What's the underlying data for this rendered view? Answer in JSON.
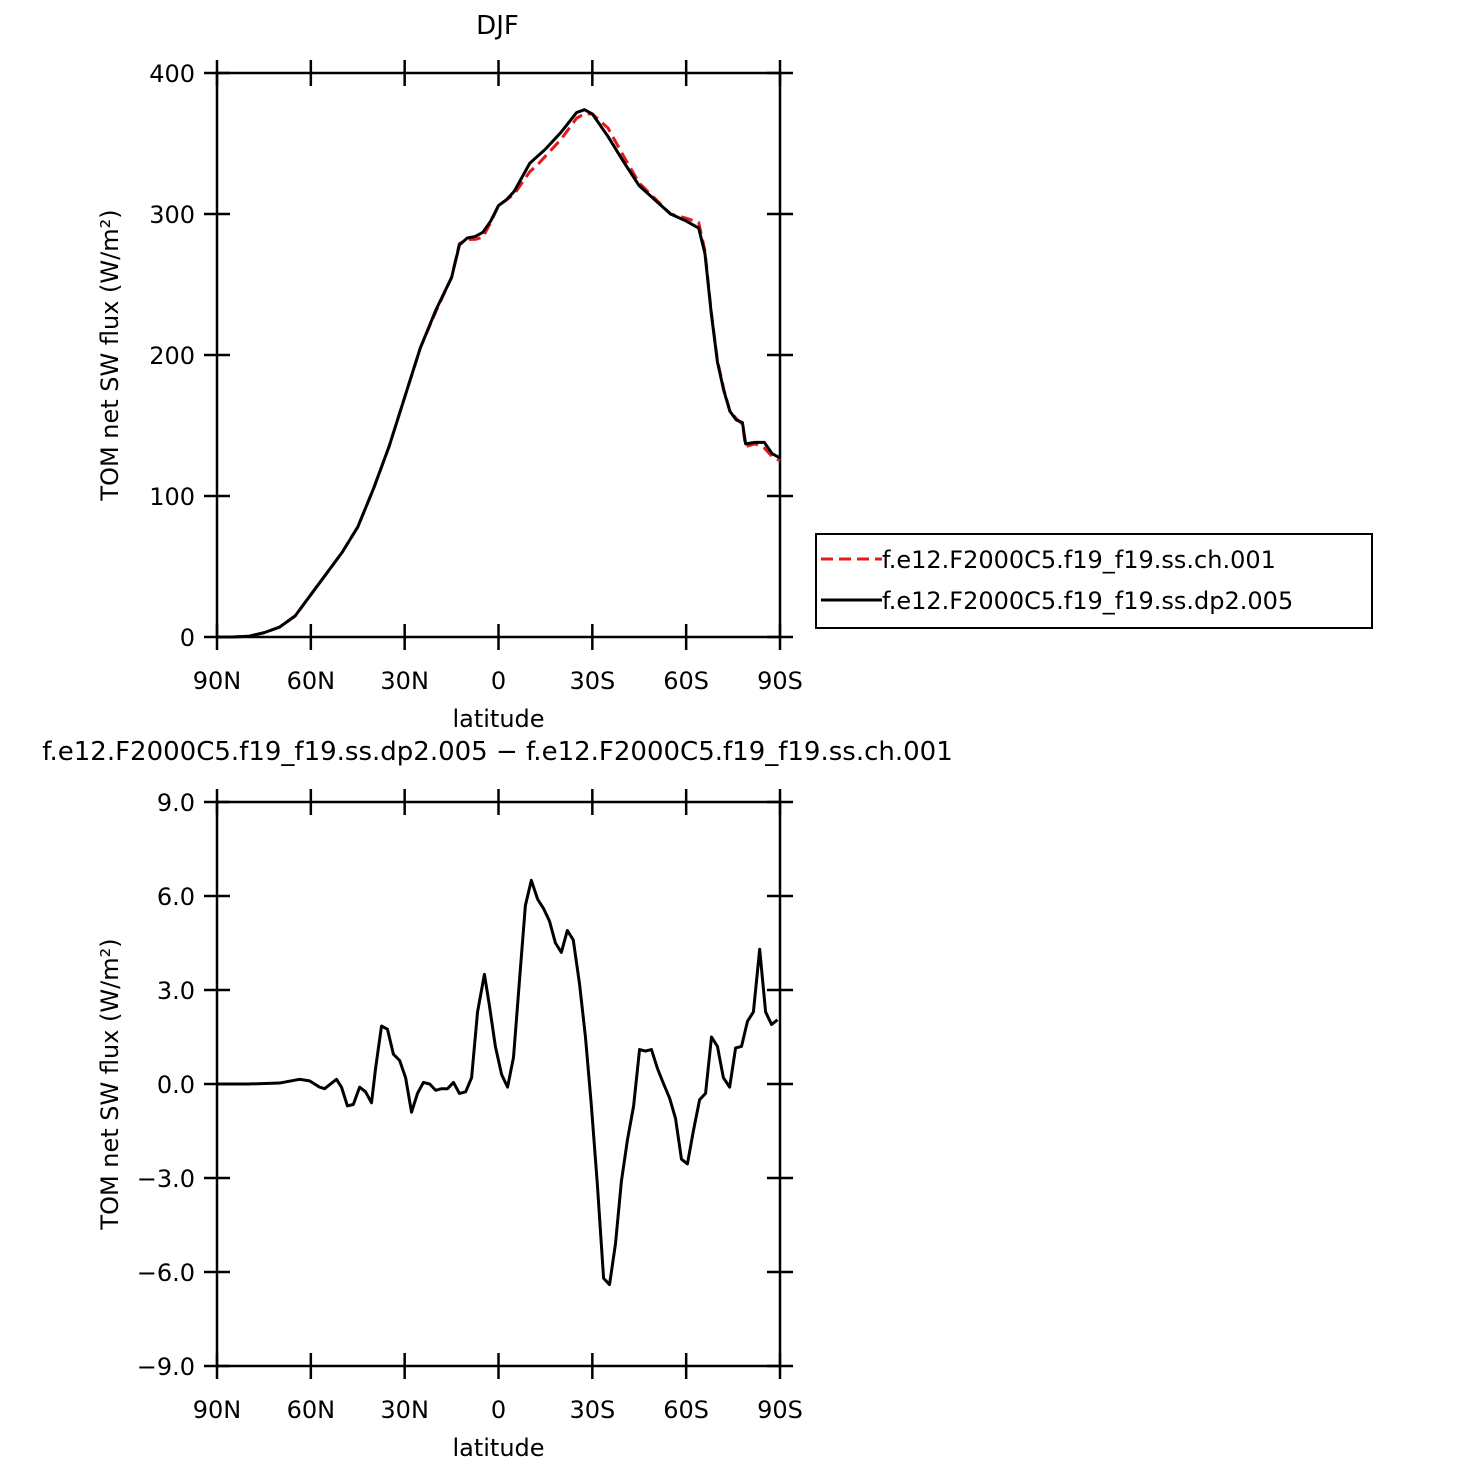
{
  "chart_data": [
    {
      "type": "line",
      "title": "DJF",
      "x_label": "latitude",
      "y_label": "TOM net SW flux (W/m²)",
      "x": [
        90,
        85,
        80,
        75,
        70,
        65,
        60,
        55,
        50,
        45,
        40,
        35,
        30,
        25,
        20,
        15,
        12.5,
        10,
        7.5,
        5,
        2.5,
        0,
        -2.5,
        -5,
        -7.5,
        -10,
        -12.5,
        -15,
        -20,
        -25,
        -27.5,
        -30,
        -35,
        -40,
        -45,
        -50,
        -55,
        -60,
        -64,
        -66,
        -68,
        -70,
        -72,
        -74,
        -76,
        -78,
        -79,
        -82,
        -85,
        -87.5,
        -90
      ],
      "series": [
        {
          "name": "f.e12.F2000C5.f19_f19.ss.ch.001",
          "color": "#e41a1c",
          "dash": true,
          "values": [
            0,
            0,
            0.5,
            3,
            7,
            15,
            30,
            45,
            60,
            78,
            105,
            135,
            170,
            205,
            231,
            255,
            279,
            282,
            282,
            283.5,
            294,
            306,
            310,
            314,
            322,
            330,
            335,
            341,
            353,
            368,
            371,
            371,
            361,
            341,
            322,
            311,
            300,
            297,
            294,
            274,
            231,
            196,
            176,
            160,
            155,
            151,
            135,
            137,
            134,
            128,
            125
          ]
        },
        {
          "name": "f.e12.F2000C5.f19_f19.ss.dp2.005",
          "color": "#000000",
          "dash": false,
          "values": [
            0,
            0,
            0.5,
            3,
            7,
            15,
            30,
            45,
            60,
            78,
            105,
            135,
            170,
            205,
            232,
            255,
            278,
            283,
            284,
            287,
            295,
            306,
            310,
            316,
            326,
            336,
            341,
            346,
            358,
            372,
            374,
            371,
            355,
            337,
            320,
            310,
            300,
            295,
            290,
            272,
            230,
            195,
            175,
            160,
            154,
            152,
            137,
            138,
            138,
            130,
            127
          ]
        }
      ],
      "xlim": [
        90,
        -90
      ],
      "xticks": [
        {
          "value": 90,
          "label": "90N"
        },
        {
          "value": 60,
          "label": "60N"
        },
        {
          "value": 30,
          "label": "30N"
        },
        0,
        {
          "value": -30,
          "label": "30S"
        },
        {
          "value": -60,
          "label": "60S"
        },
        {
          "value": -90,
          "label": "90S"
        }
      ],
      "ylim": [
        0,
        400
      ],
      "yticks": [
        0,
        100,
        200,
        300,
        400
      ],
      "legend": "right"
    },
    {
      "type": "line",
      "title": "f.e12.F2000C5.f19_f19.ss.dp2.005 − f.e12.F2000C5.f19_f19.ss.ch.001",
      "x_label": "latitude",
      "y_label": "TOM net SW flux (W/m²)",
      "x": [
        90,
        80,
        70,
        63.6,
        60.4,
        57.2,
        55.6,
        51.8,
        50.2,
        48.3,
        46.4,
        44.4,
        42.5,
        40.6,
        39.3,
        37.4,
        35.5,
        33.6,
        31.6,
        29.7,
        27.8,
        25.9,
        24,
        22,
        20.1,
        18.2,
        16.3,
        14.4,
        12.5,
        10.5,
        8.6,
        6.7,
        4.5,
        2.9,
        1,
        -1,
        -2.9,
        -4.8,
        -6.7,
        -8.6,
        -10.5,
        -12.5,
        -14.4,
        -16.3,
        -18.2,
        -20.1,
        -22,
        -23.9,
        -25.9,
        -27.8,
        -29.7,
        -31.6,
        -33.6,
        -35.5,
        -37.4,
        -39.3,
        -41.2,
        -43.2,
        -45.1,
        -47,
        -48.9,
        -50.8,
        -52.8,
        -54.7,
        -56.6,
        -58.5,
        -60.4,
        -62.3,
        -64.3,
        -66.2,
        -68.1,
        -70,
        -71.9,
        -73.9,
        -75.8,
        -77.7,
        -79.6,
        -81.5,
        -83.5,
        -85.4,
        -87.3,
        -89.2
      ],
      "series": [
        {
          "color": "#000000",
          "values": [
            0,
            0,
            0.03,
            0.15,
            0.1,
            -0.1,
            -0.15,
            0.15,
            -0.1,
            -0.7,
            -0.65,
            -0.1,
            -0.25,
            -0.6,
            0.5,
            1.85,
            1.75,
            0.95,
            0.75,
            0.2,
            -0.9,
            -0.3,
            0.05,
            0,
            -0.2,
            -0.15,
            -0.15,
            0.05,
            -0.3,
            -0.25,
            0.2,
            2.3,
            3.5,
            2.5,
            1.2,
            0.3,
            -0.1,
            0.85,
            3.3,
            5.7,
            6.5,
            5.9,
            5.6,
            5.2,
            4.5,
            4.2,
            4.9,
            4.6,
            3.2,
            1.5,
            -0.7,
            -3.2,
            -6.2,
            -6.4,
            -5.1,
            -3.1,
            -1.8,
            -0.7,
            1.1,
            1.05,
            1.1,
            0.5,
            0,
            -0.45,
            -1.1,
            -2.4,
            -2.55,
            -1.5,
            -0.5,
            -0.3,
            1.5,
            1.2,
            0.2,
            -0.1,
            1.15,
            1.2,
            2.0,
            2.3,
            4.3,
            2.3,
            1.9,
            2.05
          ]
        }
      ],
      "xlim": [
        90,
        -90
      ],
      "xticks": [
        {
          "value": 90,
          "label": "90N"
        },
        {
          "value": 60,
          "label": "60N"
        },
        {
          "value": 30,
          "label": "30N"
        },
        0,
        {
          "value": -30,
          "label": "30S"
        },
        {
          "value": -60,
          "label": "60S"
        },
        {
          "value": -90,
          "label": "90S"
        }
      ],
      "ylim": [
        -9,
        9
      ],
      "yticks": [
        {
          "value": -9,
          "label": "−9.0"
        },
        {
          "value": -6,
          "label": "−6.0"
        },
        {
          "value": -3,
          "label": "−3.0"
        },
        {
          "value": 0,
          "label": "0.0"
        },
        {
          "value": 3,
          "label": "3.0"
        },
        {
          "value": 6,
          "label": "6.0"
        },
        {
          "value": 9,
          "label": "9.0"
        }
      ]
    }
  ]
}
